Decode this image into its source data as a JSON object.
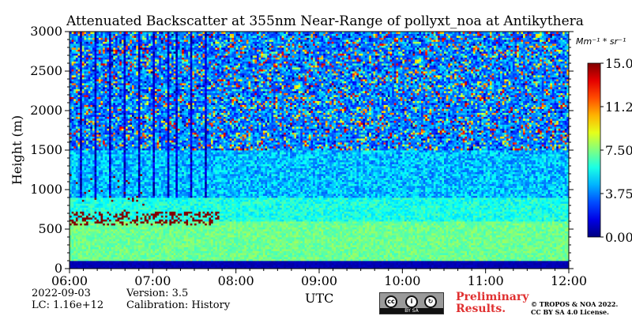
{
  "title": "Attenuated Backscatter at 355nm Near-Range of pollyxt_noa at Antikythera",
  "colorbar": {
    "unit_label": "Mm⁻¹ * sr⁻¹",
    "range": [
      0,
      15
    ],
    "ticks": [
      "15.00",
      "11.25",
      "7.50",
      "3.75",
      "0.00"
    ],
    "colormap": "jet"
  },
  "meta": {
    "date": "2022-09-03",
    "lc": "LC: 1.16e+12",
    "version": "Version: 3.5",
    "calibration": "Calibration: History"
  },
  "footer": {
    "preliminary_line1": "Preliminary",
    "preliminary_line2": "Results.",
    "copyright_line1": "© TROPOS & NOA 2022.",
    "copyright_line2": "CC BY SA 4.0 License.",
    "license_badge_text": "BY   SA",
    "license_icon": "creative-commons-by-sa-icon"
  },
  "colors": {
    "preliminary": "#e03030"
  },
  "chart_data": {
    "type": "heatmap",
    "title": "Attenuated Backscatter at 355nm Near-Range of pollyxt_noa at Antikythera",
    "xlabel": "UTC",
    "ylabel": "Height (m)",
    "x_ticks": [
      "06:00",
      "07:00",
      "08:00",
      "09:00",
      "10:00",
      "11:00",
      "12:00"
    ],
    "x_range_hours": [
      6,
      12
    ],
    "y_ticks": [
      0,
      500,
      1000,
      1500,
      2000,
      2500,
      3000
    ],
    "ylim": [
      0,
      3000
    ],
    "value_range": [
      0,
      15
    ],
    "value_unit": "Mm-1 sr-1",
    "grid": false,
    "features": [
      {
        "description": "low signal near ground",
        "height_range": [
          0,
          100
        ],
        "value": 0.5
      },
      {
        "description": "aerosol layer",
        "height_range": [
          100,
          600
        ],
        "value": 7
      },
      {
        "description": "broken low clouds",
        "time_range": [
          "06:00",
          "07:50"
        ],
        "height_range": [
          550,
          1200
        ],
        "value": 15
      }
    ]
  }
}
